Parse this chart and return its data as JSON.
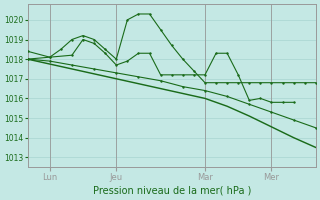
{
  "bg_color": "#c4e8e4",
  "grid_color": "#a8d4d0",
  "line_color": "#1a6b1a",
  "title": "Pression niveau de la mer( hPa )",
  "ylim": [
    1012.5,
    1020.8
  ],
  "yticks": [
    1013,
    1014,
    1015,
    1016,
    1017,
    1018,
    1019,
    1020
  ],
  "xtick_labels": [
    "Lun",
    "Jeu",
    "Mar",
    "Mer"
  ],
  "xtick_positions": [
    2,
    8,
    16,
    22
  ],
  "xlim": [
    0,
    26
  ],
  "vline_positions": [
    2,
    8,
    16,
    22
  ],
  "series_a_x": [
    0,
    2,
    4,
    6,
    8,
    10,
    12,
    14,
    16,
    18,
    20,
    22,
    24,
    26
  ],
  "series_a_y": [
    1018.0,
    1017.9,
    1017.7,
    1017.5,
    1017.3,
    1017.1,
    1016.9,
    1016.6,
    1016.4,
    1016.1,
    1015.7,
    1015.3,
    1014.9,
    1014.5
  ],
  "series_b_x": [
    0,
    2,
    4,
    6,
    8,
    10,
    12,
    14,
    16,
    18,
    20,
    22,
    24,
    26
  ],
  "series_b_y": [
    1018.0,
    1017.75,
    1017.5,
    1017.25,
    1017.0,
    1016.75,
    1016.5,
    1016.25,
    1016.0,
    1015.6,
    1015.1,
    1014.55,
    1014.0,
    1013.5
  ],
  "series_c_x": [
    0,
    2,
    4,
    5,
    6,
    7,
    8,
    9,
    10,
    11,
    12,
    13,
    14,
    15,
    16,
    17,
    18,
    19,
    20,
    21,
    22,
    23,
    24
  ],
  "series_c_y": [
    1018.0,
    1018.1,
    1018.2,
    1019.0,
    1018.8,
    1018.3,
    1017.7,
    1017.9,
    1018.3,
    1018.3,
    1017.2,
    1017.2,
    1017.2,
    1017.2,
    1017.2,
    1018.3,
    1018.3,
    1017.2,
    1015.9,
    1016.0,
    1015.8,
    1015.8,
    1015.8
  ],
  "series_d_x": [
    0,
    2,
    3,
    4,
    5,
    6,
    7,
    8,
    9,
    10,
    11,
    12,
    13,
    14,
    15,
    16,
    17,
    18,
    19,
    20,
    21,
    22,
    23,
    24,
    25,
    26
  ],
  "series_d_y": [
    1018.4,
    1018.1,
    1018.5,
    1019.0,
    1019.2,
    1019.0,
    1018.5,
    1018.0,
    1020.0,
    1020.3,
    1020.3,
    1019.5,
    1018.7,
    1018.0,
    1017.4,
    1016.8,
    1016.8,
    1016.8,
    1016.8,
    1016.8,
    1016.8,
    1016.8,
    1016.8,
    1016.8,
    1016.8,
    1016.8
  ]
}
